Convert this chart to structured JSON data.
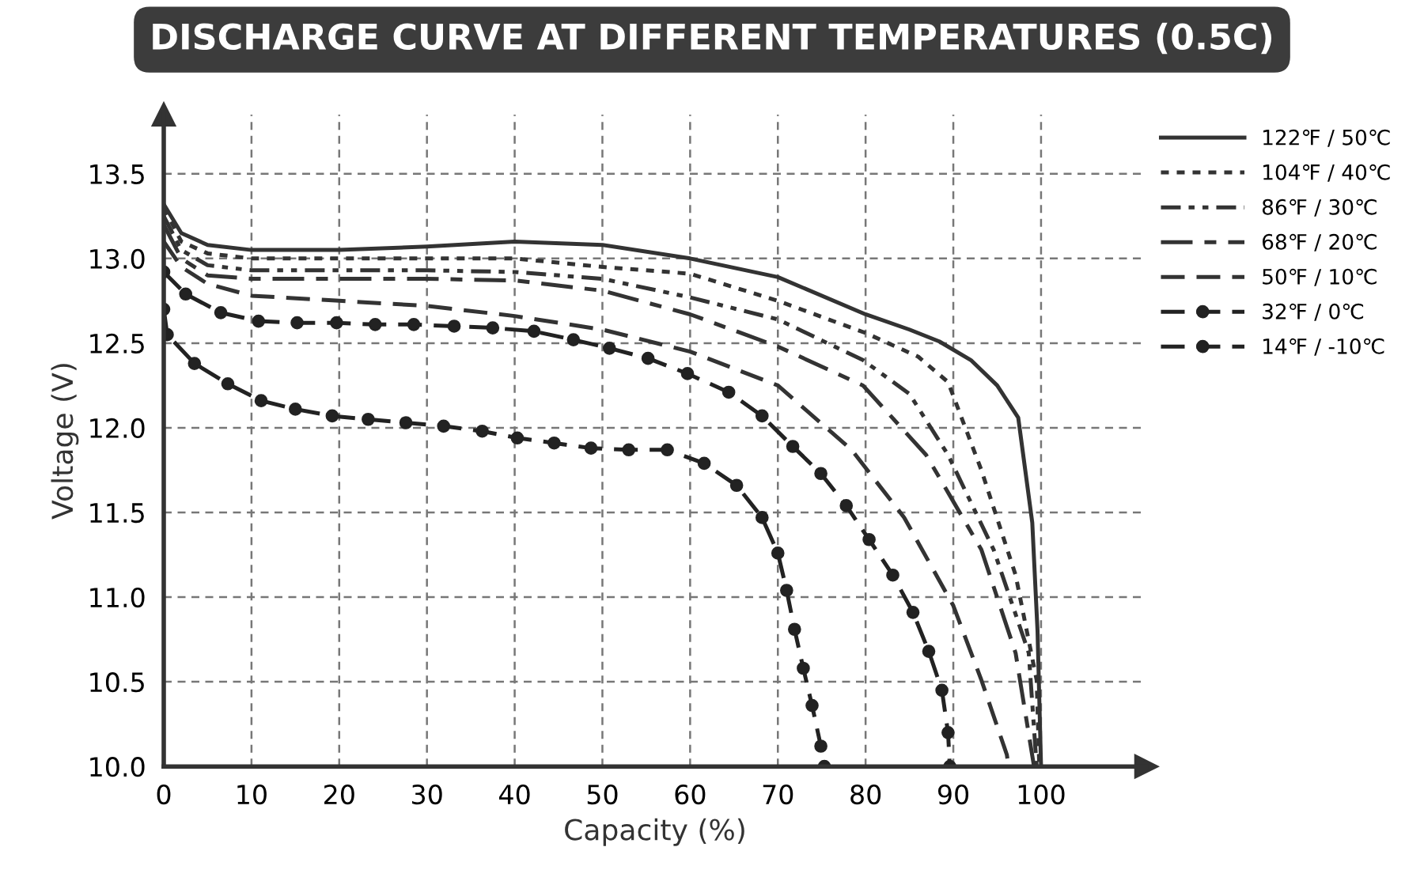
{
  "chart_data": {
    "type": "line",
    "title": "DISCHARGE CURVE AT DIFFERENT TEMPERATURES (0.5C)",
    "xlabel": "Capacity (%)",
    "ylabel": "Voltage (V)",
    "xlim": [
      0,
      112
    ],
    "ylim": [
      10.0,
      13.85
    ],
    "xticks": [
      0,
      10,
      20,
      30,
      40,
      50,
      60,
      70,
      80,
      90,
      100
    ],
    "yticks": [
      {
        "value": 10.0,
        "label": "10.0"
      },
      10.5,
      {
        "value": 11.0,
        "label": "11.0"
      },
      11.5,
      {
        "value": 12.0,
        "label": "12.0"
      },
      12.5,
      {
        "value": 13.0,
        "label": "13.0"
      },
      13.5
    ],
    "grid": true,
    "legend": "top right",
    "marker": "none",
    "series": [
      {
        "name": "122℉ / 50℃",
        "color": "#333333",
        "line_style": "solid",
        "x": [
          0,
          2,
          5,
          10,
          20,
          30,
          40,
          50,
          60,
          70,
          80,
          85,
          88.4,
          92,
          95,
          97.4,
          99,
          99.6,
          100
        ],
        "values": [
          13.32,
          13.15,
          13.08,
          13.05,
          13.05,
          13.07,
          13.1,
          13.08,
          13.0,
          12.89,
          12.67,
          12.58,
          12.51,
          12.4,
          12.25,
          12.06,
          11.44,
          10.8,
          10.0
        ]
      },
      {
        "name": "104℉ / 40℃",
        "color": "#333333",
        "line_style": "dotted",
        "x": [
          0,
          2,
          5,
          10,
          20,
          30,
          40,
          50,
          60,
          70,
          80,
          86,
          89.4,
          93.2,
          97.1,
          99.5,
          99.8
        ],
        "values": [
          13.3,
          13.1,
          13.03,
          13.0,
          13.0,
          13.0,
          13.0,
          12.95,
          12.91,
          12.75,
          12.56,
          12.42,
          12.27,
          11.75,
          11.13,
          10.51,
          10.0
        ]
      },
      {
        "name": "86℉ / 30℃",
        "color": "#333333",
        "line_style": "dashdotdot",
        "x": [
          0,
          2,
          5,
          10,
          20,
          30,
          40,
          50,
          60,
          70,
          79.7,
          85,
          89.4,
          94.6,
          98.6,
          99.5
        ],
        "values": [
          13.25,
          13.05,
          12.96,
          12.93,
          12.93,
          12.93,
          12.92,
          12.88,
          12.77,
          12.64,
          12.4,
          12.2,
          11.84,
          11.28,
          10.67,
          10.0
        ]
      },
      {
        "name": "68℉ / 20℃",
        "color": "#333333",
        "line_style": "dashdot",
        "x": [
          0,
          2,
          5,
          10,
          20,
          30,
          40,
          50,
          60,
          70,
          79.7,
          86.9,
          93.2,
          97.1,
          99.2
        ],
        "values": [
          13.2,
          13.0,
          12.9,
          12.88,
          12.88,
          12.88,
          12.87,
          12.81,
          12.67,
          12.48,
          12.25,
          11.84,
          11.28,
          10.67,
          10.0
        ]
      },
      {
        "name": "50℉ / 10℃",
        "color": "#333333",
        "line_style": "dashed",
        "x": [
          0,
          2,
          5,
          10,
          20,
          30,
          40,
          50,
          60,
          70,
          78.4,
          84.4,
          90.0,
          93.2,
          96.1,
          96.3
        ],
        "values": [
          13.1,
          12.95,
          12.85,
          12.78,
          12.75,
          12.72,
          12.66,
          12.58,
          12.45,
          12.25,
          11.87,
          11.47,
          10.95,
          10.51,
          10.07,
          10.0
        ]
      },
      {
        "name": "32℉ / 0℃",
        "color": "#222222",
        "line_style": "dashed",
        "marker": "circle",
        "x": [
          0,
          2.5,
          6.5,
          10.8,
          15.2,
          19.7,
          24.1,
          28.5,
          33.1,
          37.5,
          42.2,
          46.7,
          50.8,
          55.2,
          59.7,
          64.4,
          68.2,
          71.7,
          74.9,
          77.8,
          80.4,
          83.1,
          85.4,
          87.2,
          88.7,
          89.4,
          89.6
        ],
        "values": [
          12.92,
          12.79,
          12.68,
          12.63,
          12.62,
          12.62,
          12.61,
          12.61,
          12.6,
          12.59,
          12.57,
          12.52,
          12.47,
          12.41,
          12.32,
          12.21,
          12.07,
          11.89,
          11.73,
          11.54,
          11.34,
          11.13,
          10.91,
          10.68,
          10.45,
          10.2,
          10.0
        ]
      },
      {
        "name": "14℉ / -10℃",
        "color": "#222222",
        "line_style": "dashed",
        "marker": "circle",
        "x": [
          0,
          0.4,
          3.5,
          7.3,
          11.1,
          15.0,
          19.2,
          23.3,
          27.6,
          31.9,
          36.3,
          40.3,
          44.5,
          48.7,
          53.0,
          57.4,
          61.6,
          65.3,
          68.2,
          70.0,
          71.0,
          71.9,
          72.9,
          73.9,
          74.9,
          75.3
        ],
        "values": [
          12.7,
          12.55,
          12.38,
          12.26,
          12.16,
          12.11,
          12.07,
          12.05,
          12.03,
          12.01,
          11.98,
          11.94,
          11.91,
          11.88,
          11.87,
          11.87,
          11.79,
          11.66,
          11.47,
          11.26,
          11.04,
          10.81,
          10.58,
          10.36,
          10.12,
          10.0
        ]
      }
    ]
  }
}
